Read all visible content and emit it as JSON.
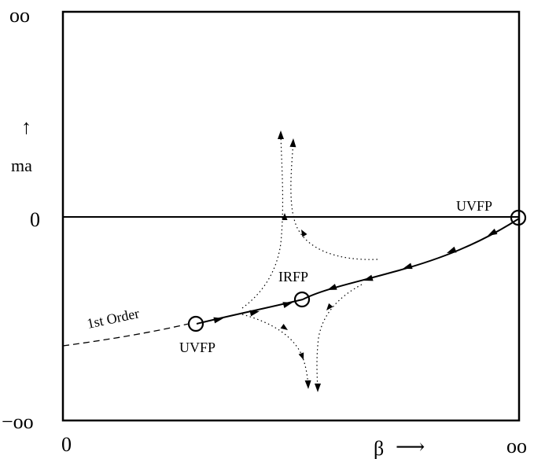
{
  "axes": {
    "y_top": "oo",
    "y_zero": "0",
    "y_bottom": "−oo",
    "y_label": "ma",
    "y_arrow": "↑",
    "x_zero": "0",
    "x_right": "oo",
    "x_label": "β",
    "x_arrow": "⟶"
  },
  "labels": {
    "uvfp_top": "UVFP",
    "irfp": "IRFP",
    "uvfp_bottom": "UVFP",
    "first_order": "1st Order"
  }
}
